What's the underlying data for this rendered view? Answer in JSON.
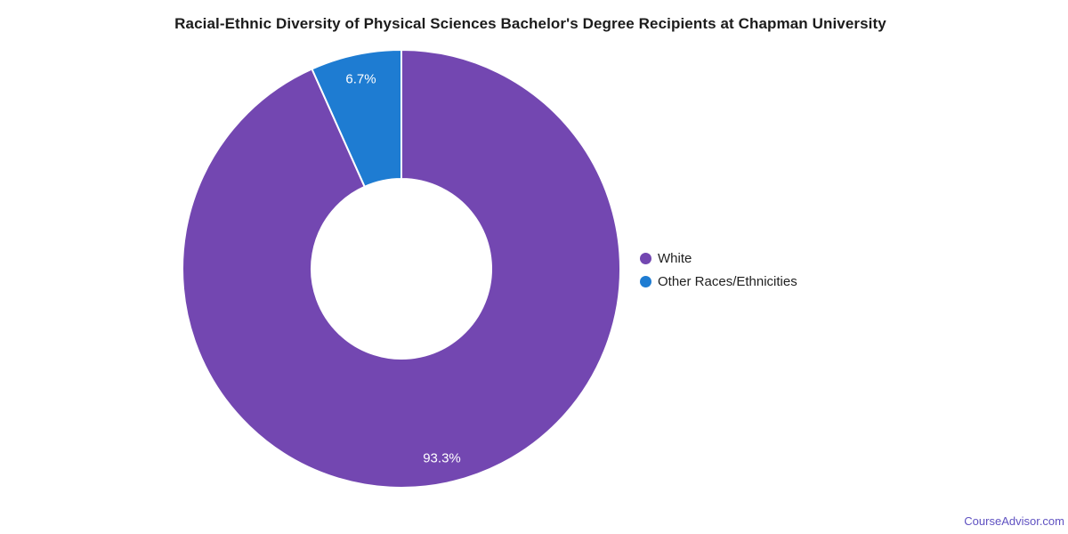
{
  "chart_data": {
    "type": "pie",
    "subtype": "donut",
    "title": "Racial-Ethnic Diversity of Physical Sciences Bachelor's Degree Recipients at Chapman University",
    "categories": [
      "White",
      "Other Races/Ethnicities"
    ],
    "values": [
      93.3,
      6.7
    ],
    "labels": [
      "93.3%",
      "6.7%"
    ],
    "colors": [
      "#7347B1",
      "#1E7CD2"
    ],
    "slice_label_color": "#ffffff",
    "start_angle_deg": 0,
    "direction": "clockwise",
    "inner_radius_ratio": 0.41,
    "legend_position": "right",
    "background": "#ffffff"
  },
  "footer": {
    "link_text": "CourseAdvisor.com",
    "link_color": "#5F51C1"
  }
}
